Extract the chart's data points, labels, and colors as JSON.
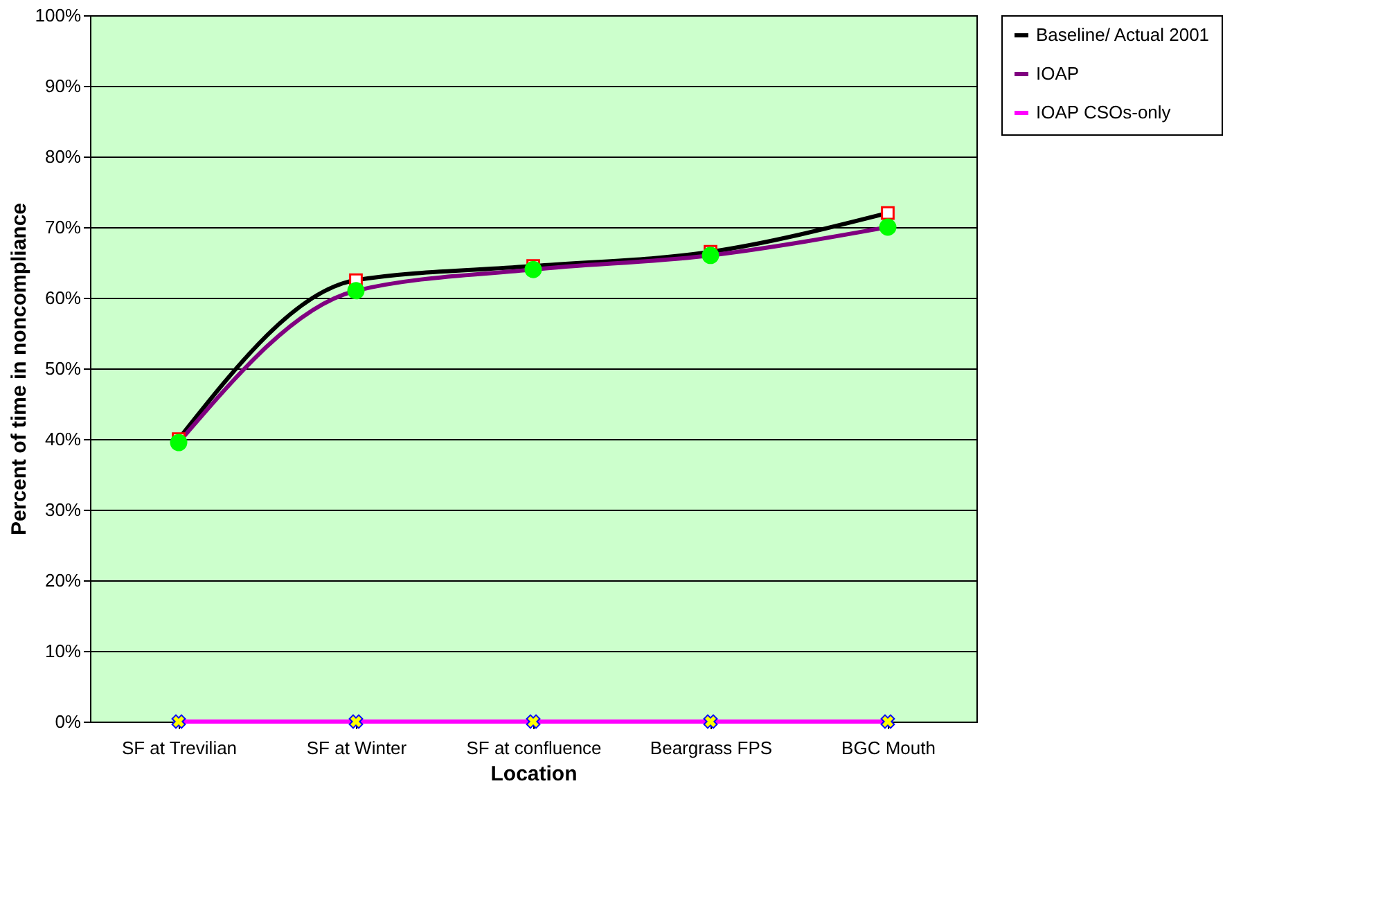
{
  "chart_data": {
    "type": "line",
    "xlabel": "Location",
    "ylabel": "Percent of time in noncompliance",
    "categories": [
      "SF at Trevilian",
      "SF at Winter",
      "SF at confluence",
      "Beargrass FPS",
      "BGC Mouth"
    ],
    "series": [
      {
        "name": "Baseline/ Actual 2001",
        "color": "#000000",
        "marker": "square",
        "values": [
          40,
          62.5,
          64.5,
          66.5,
          72
        ]
      },
      {
        "name": "IOAP",
        "color": "#800080",
        "marker": "circle",
        "values": [
          39.5,
          61,
          64,
          66,
          70
        ]
      },
      {
        "name": "IOAP CSOs-only",
        "color": "#ff00ff",
        "marker": "cross",
        "values": [
          0,
          0,
          0,
          0,
          0
        ]
      }
    ],
    "ylim": [
      0,
      100
    ],
    "yticks": [
      {
        "value": 0,
        "label": "0%"
      },
      {
        "value": 10,
        "label": "10%"
      },
      {
        "value": 20,
        "label": "20%"
      },
      {
        "value": 30,
        "label": "30%"
      },
      {
        "value": 40,
        "label": "40%"
      },
      {
        "value": 50,
        "label": "50%"
      },
      {
        "value": 60,
        "label": "60%"
      },
      {
        "value": 70,
        "label": "70%"
      },
      {
        "value": 80,
        "label": "80%"
      },
      {
        "value": 90,
        "label": "90%"
      },
      {
        "value": 100,
        "label": "100%"
      }
    ],
    "grid": "y",
    "legend": "right"
  }
}
